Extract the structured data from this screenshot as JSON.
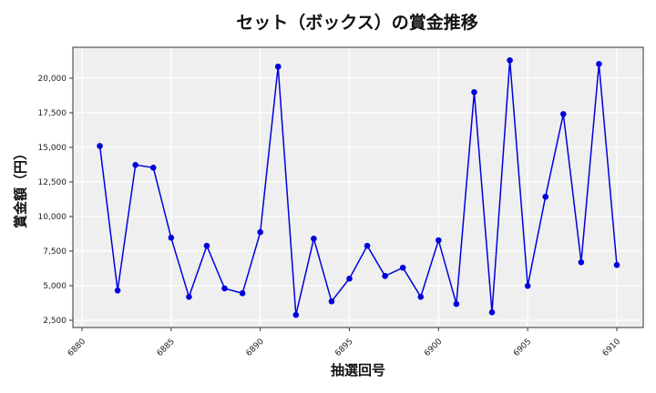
{
  "chart_data": {
    "type": "line",
    "title": "セット（ボックス）の賞金推移",
    "xlabel": "抽選回号",
    "ylabel": "賞金額（円）",
    "x": [
      6881,
      6882,
      6883,
      6884,
      6885,
      6886,
      6887,
      6888,
      6889,
      6890,
      6891,
      6892,
      6893,
      6894,
      6895,
      6896,
      6897,
      6898,
      6899,
      6900,
      6901,
      6902,
      6903,
      6904,
      6905,
      6906,
      6907,
      6908,
      6909,
      6910
    ],
    "series": [
      {
        "name": "賞金額",
        "color": "#0000dd",
        "values": [
          15100,
          4650,
          13730,
          13530,
          8470,
          4190,
          7880,
          4800,
          4450,
          8870,
          20840,
          2880,
          8400,
          3860,
          5510,
          7880,
          5700,
          6300,
          4190,
          8280,
          3670,
          18990,
          3070,
          21300,
          4980,
          11430,
          17410,
          6690,
          21030,
          6490
        ]
      }
    ],
    "xticks": [
      6880,
      6885,
      6890,
      6895,
      6900,
      6905,
      6910
    ],
    "yticks": [
      2500,
      5000,
      7500,
      10000,
      12500,
      15000,
      17500,
      20000
    ],
    "ytick_labels": [
      "2,500",
      "5,000",
      "7,500",
      "10,000",
      "12,500",
      "15,000",
      "17,500",
      "20,000"
    ],
    "xlim": [
      6879.5,
      6911.5
    ],
    "ylim": [
      2050,
      22210
    ],
    "grid": true,
    "legend": "none",
    "plot_bg": "#efefef"
  }
}
